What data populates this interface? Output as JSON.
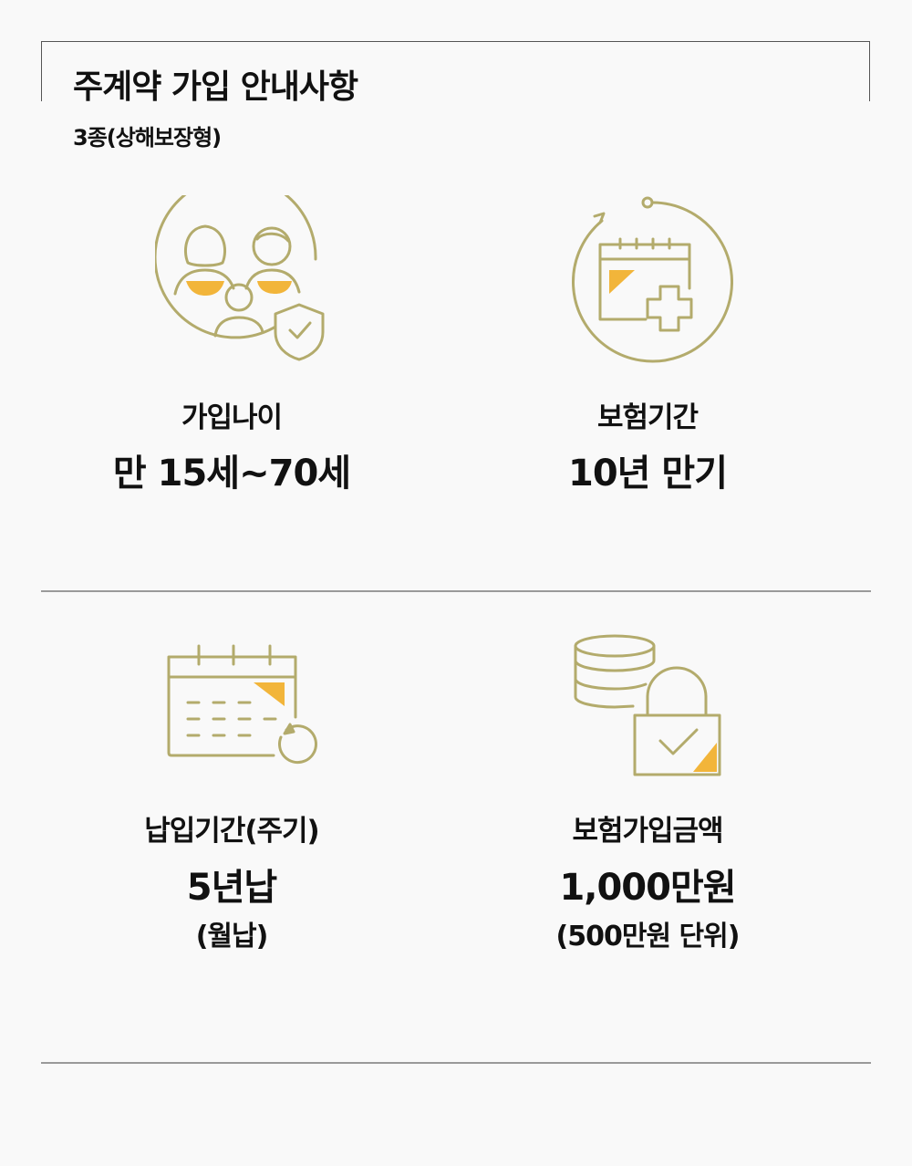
{
  "header": {
    "title": "주계약 가입 안내사항",
    "subtitle": "3종(상해보장형)"
  },
  "items": [
    {
      "icon": "family-shield-icon",
      "label": "가입나이",
      "value": "만 15세~70세"
    },
    {
      "icon": "calendar-plus-icon",
      "label": "보험기간",
      "value": "10년 만기"
    },
    {
      "icon": "calendar-refresh-icon",
      "label": "납입기간(주기)",
      "value": "5년납",
      "note": "(월납)"
    },
    {
      "icon": "coins-lock-icon",
      "label": "보험가입금액",
      "value": "1,000만원",
      "note": "(500만원 단위)"
    }
  ],
  "colors": {
    "icon_line": "#b3ab6c",
    "icon_accent": "#f2b53a",
    "divider": "#9a9a9a",
    "text": "#111111"
  }
}
